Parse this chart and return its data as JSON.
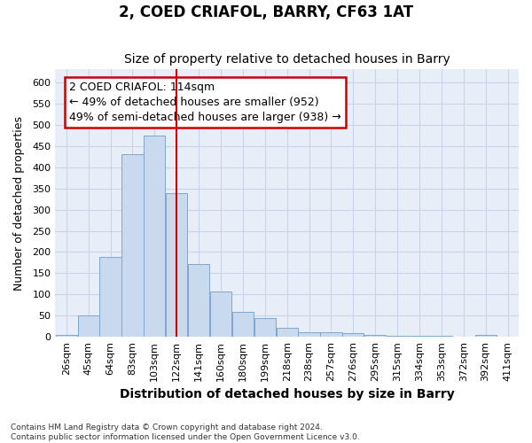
{
  "title": "2, COED CRIAFOL, BARRY, CF63 1AT",
  "subtitle": "Size of property relative to detached houses in Barry",
  "xlabel": "Distribution of detached houses by size in Barry",
  "ylabel": "Number of detached properties",
  "categories": [
    "26sqm",
    "45sqm",
    "64sqm",
    "83sqm",
    "103sqm",
    "122sqm",
    "141sqm",
    "160sqm",
    "180sqm",
    "199sqm",
    "218sqm",
    "238sqm",
    "257sqm",
    "276sqm",
    "295sqm",
    "315sqm",
    "334sqm",
    "353sqm",
    "372sqm",
    "392sqm",
    "411sqm"
  ],
  "values": [
    4,
    50,
    188,
    430,
    475,
    338,
    172,
    107,
    60,
    44,
    22,
    11,
    11,
    8,
    5,
    3,
    3,
    2,
    1,
    4,
    1
  ],
  "bar_color": "#c9d9ee",
  "bar_edge_color": "#7da8d0",
  "grid_color": "#c8d4e8",
  "background_color": "#e8eef8",
  "vline_x_index": 5,
  "vline_color": "#cc0000",
  "annotation_line1": "2 COED CRIAFOL: 114sqm",
  "annotation_line2": "← 49% of detached houses are smaller (952)",
  "annotation_line3": "49% of semi-detached houses are larger (938) →",
  "annotation_box_color": "#ffffff",
  "annotation_box_edge": "#cc0000",
  "ylim_max": 630,
  "yticks": [
    0,
    50,
    100,
    150,
    200,
    250,
    300,
    350,
    400,
    450,
    500,
    550,
    600
  ],
  "footer_text": "Contains HM Land Registry data © Crown copyright and database right 2024.\nContains public sector information licensed under the Open Government Licence v3.0.",
  "title_fontsize": 12,
  "subtitle_fontsize": 10,
  "xlabel_fontsize": 10,
  "ylabel_fontsize": 9,
  "tick_fontsize": 8,
  "annotation_fontsize": 9,
  "footer_fontsize": 6.5
}
